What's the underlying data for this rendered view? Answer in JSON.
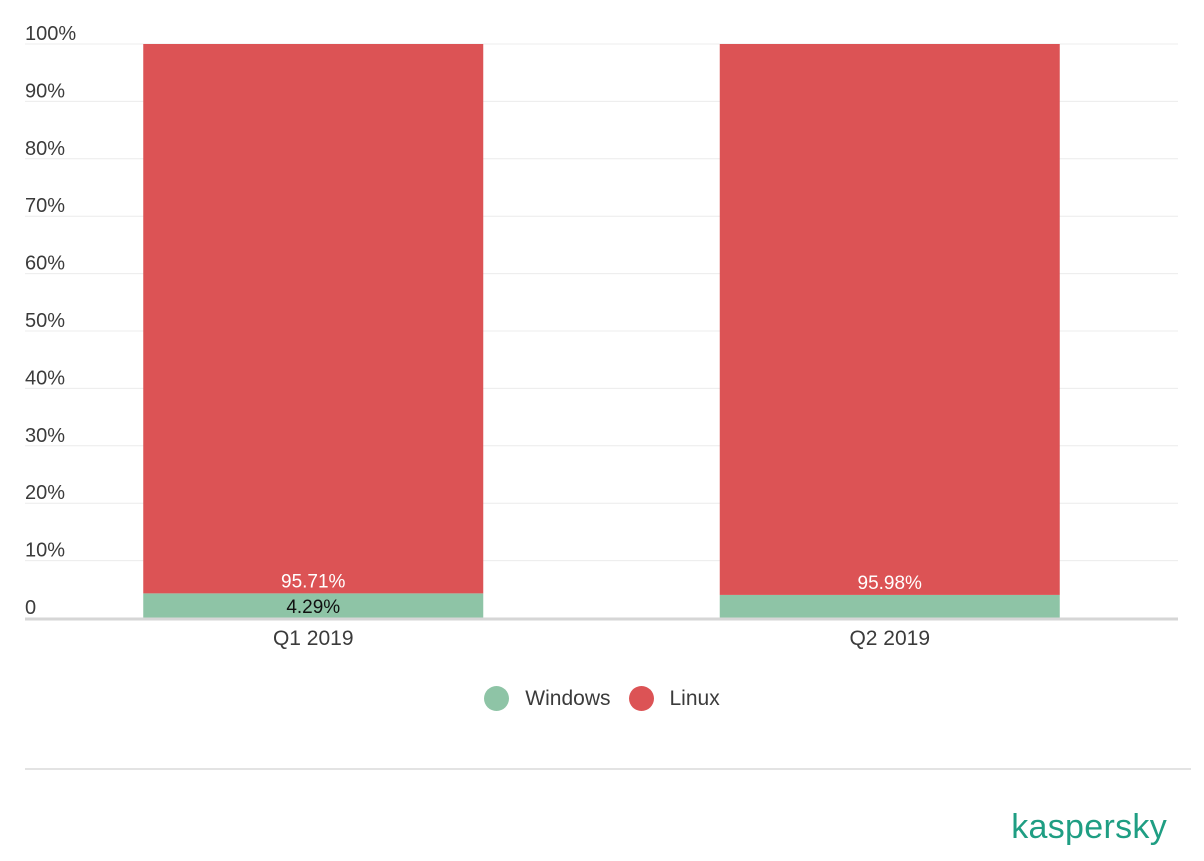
{
  "chart_data": {
    "type": "bar",
    "stacked": true,
    "categories": [
      "Q1 2019",
      "Q2 2019"
    ],
    "series": [
      {
        "name": "Windows",
        "color": "#8ec4a6",
        "values": [
          4.29,
          4.02
        ],
        "labels": [
          "4.29%",
          ""
        ]
      },
      {
        "name": "Linux",
        "color": "#dc5355",
        "values": [
          95.71,
          95.98
        ],
        "labels": [
          "95.71%",
          "95.98%"
        ]
      }
    ],
    "ylim": [
      0,
      100
    ],
    "yticks": [
      0,
      10,
      20,
      30,
      40,
      50,
      60,
      70,
      80,
      90,
      100
    ],
    "ytick_labels": [
      "0",
      "10%",
      "20%",
      "30%",
      "40%",
      "50%",
      "60%",
      "70%",
      "80%",
      "90%",
      "100%"
    ],
    "grid": true,
    "legend_position": "bottom-center"
  },
  "legend": {
    "items": [
      {
        "label": "Windows",
        "color": "#8ec4a6"
      },
      {
        "label": "Linux",
        "color": "#dc5355"
      }
    ]
  },
  "branding": {
    "logo_text": "kaspersky"
  }
}
